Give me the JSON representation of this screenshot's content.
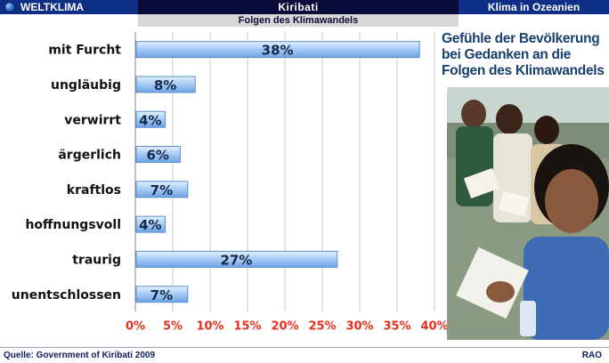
{
  "header": {
    "left": "WELTKLIMA",
    "center": "Kiribati",
    "right": "Klima in Ozeanien"
  },
  "subtitle": "Folgen des Klimawandels",
  "headline": {
    "line1": "Gefühle der Bevölkerung",
    "line2": "bei Gedanken an die",
    "line3": "Folgen des Klimawandels"
  },
  "footer": {
    "source": "Quelle: Government of Kiribati 2009",
    "brand": "RAO"
  },
  "colors": {
    "header_blue": "#0f2e86",
    "header_dark": "#0b0b3a",
    "bar_fill": "#a9cdf6",
    "bar_edge": "#5b8fd0",
    "tick_label": "#e8301c",
    "headline": "#17406e"
  },
  "chart_data": {
    "type": "bar",
    "orientation": "horizontal",
    "categories": [
      "mit Furcht",
      "ungläubig",
      "verwirrt",
      "ärgerlich",
      "kraftlos",
      "hoffnungsvoll",
      "traurig",
      "unentschlossen"
    ],
    "values": [
      38,
      8,
      4,
      6,
      7,
      4,
      27,
      7
    ],
    "value_labels": [
      "38%",
      "8%",
      "4%",
      "6%",
      "7%",
      "4%",
      "27%",
      "7%"
    ],
    "xlim": [
      0,
      40
    ],
    "xticks": [
      0,
      5,
      10,
      15,
      20,
      25,
      30,
      35,
      40
    ],
    "xtick_labels": [
      "0%",
      "5%",
      "10%",
      "15%",
      "20%",
      "25%",
      "30%",
      "35%",
      "40%"
    ],
    "grid": true
  }
}
